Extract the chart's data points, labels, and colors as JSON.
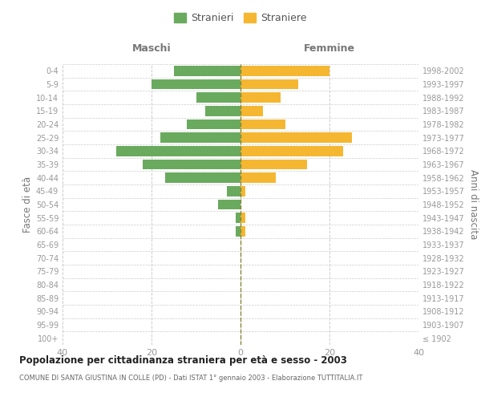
{
  "age_groups": [
    "100+",
    "95-99",
    "90-94",
    "85-89",
    "80-84",
    "75-79",
    "70-74",
    "65-69",
    "60-64",
    "55-59",
    "50-54",
    "45-49",
    "40-44",
    "35-39",
    "30-34",
    "25-29",
    "20-24",
    "15-19",
    "10-14",
    "5-9",
    "0-4"
  ],
  "birth_years": [
    "≤ 1902",
    "1903-1907",
    "1908-1912",
    "1913-1917",
    "1918-1922",
    "1923-1927",
    "1928-1932",
    "1933-1937",
    "1938-1942",
    "1943-1947",
    "1948-1952",
    "1953-1957",
    "1958-1962",
    "1963-1967",
    "1968-1972",
    "1973-1977",
    "1978-1982",
    "1983-1987",
    "1988-1992",
    "1993-1997",
    "1998-2002"
  ],
  "males": [
    0,
    0,
    0,
    0,
    0,
    0,
    0,
    0,
    1,
    1,
    5,
    3,
    17,
    22,
    28,
    18,
    12,
    8,
    10,
    20,
    15
  ],
  "females": [
    0,
    0,
    0,
    0,
    0,
    0,
    0,
    0,
    1,
    1,
    0,
    1,
    8,
    15,
    23,
    25,
    10,
    5,
    9,
    13,
    20
  ],
  "male_color": "#6aaa5e",
  "female_color": "#f5b731",
  "dashed_line_color": "#888833",
  "grid_color": "#cccccc",
  "title": "Popolazione per cittadinanza straniera per età e sesso - 2003",
  "subtitle": "COMUNE DI SANTA GIUSTINA IN COLLE (PD) - Dati ISTAT 1° gennaio 2003 - Elaborazione TUTTITALIA.IT",
  "ylabel_left": "Fasce di età",
  "ylabel_right": "Anni di nascita",
  "xlabel_left": "Maschi",
  "xlabel_right": "Femmine",
  "legend_male": "Stranieri",
  "legend_female": "Straniere",
  "xlim": 40,
  "background_color": "#ffffff"
}
